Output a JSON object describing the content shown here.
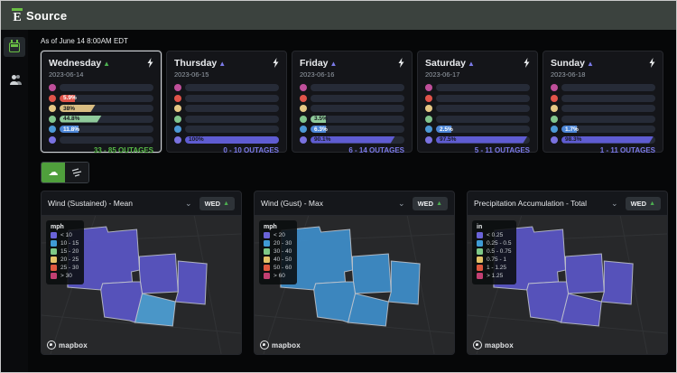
{
  "header": {
    "brand": "Source"
  },
  "sidebar": {
    "items": [
      "calendar",
      "users"
    ]
  },
  "as_of": "As of June 14 8:00AM EDT",
  "colors": {
    "accent_green": "#57b947",
    "accent_purple": "#7b7ae8",
    "track": "#262b37"
  },
  "days": [
    {
      "name": "Wednesday",
      "trend": "▲",
      "trend_color": "#4caf50",
      "date": "2023-06-14",
      "selected": true,
      "rows": [
        {
          "color": "#bf4f9a",
          "pct": 0,
          "label": "",
          "fill": "",
          "text": ""
        },
        {
          "color": "#e0544a",
          "pct": 5.9,
          "label": "5.9%",
          "fill": "#e0544a",
          "text": "#ffffff"
        },
        {
          "color": "#e6c885",
          "pct": 38,
          "label": "38%",
          "fill": "#d9bd82",
          "text": "#16181d"
        },
        {
          "color": "#82c68e",
          "pct": 44.8,
          "label": "44.8%",
          "fill": "#8fca9b",
          "text": "#16181d"
        },
        {
          "color": "#4d99d6",
          "pct": 11.8,
          "label": "11.8%",
          "fill": "#4d86d6",
          "text": "#ffffff"
        },
        {
          "color": "#7a72e0",
          "pct": 0,
          "label": "",
          "fill": "",
          "text": ""
        }
      ],
      "outages": "33 - 85 OUTAGES",
      "outages_color": "#57b947"
    },
    {
      "name": "Thursday",
      "trend": "▲",
      "trend_color": "#7b7ae8",
      "date": "2023-06-15",
      "selected": false,
      "rows": [
        {
          "color": "#bf4f9a",
          "pct": 0,
          "label": "",
          "fill": "",
          "text": ""
        },
        {
          "color": "#e0544a",
          "pct": 0,
          "label": "",
          "fill": "",
          "text": ""
        },
        {
          "color": "#e6c885",
          "pct": 0,
          "label": "",
          "fill": "",
          "text": ""
        },
        {
          "color": "#82c68e",
          "pct": 0,
          "label": "",
          "fill": "",
          "text": ""
        },
        {
          "color": "#4d99d6",
          "pct": 0,
          "label": "",
          "fill": "",
          "text": ""
        },
        {
          "color": "#7a72e0",
          "pct": 100,
          "label": "100%",
          "fill": "#5f5cd2",
          "text": "#16181d"
        }
      ],
      "outages": "0 - 10 OUTAGES",
      "outages_color": "#7b7ae8"
    },
    {
      "name": "Friday",
      "trend": "▲",
      "trend_color": "#7b7ae8",
      "date": "2023-06-16",
      "selected": false,
      "rows": [
        {
          "color": "#bf4f9a",
          "pct": 0,
          "label": "",
          "fill": "",
          "text": ""
        },
        {
          "color": "#e0544a",
          "pct": 0,
          "label": "",
          "fill": "",
          "text": ""
        },
        {
          "color": "#e6c885",
          "pct": 0,
          "label": "",
          "fill": "",
          "text": ""
        },
        {
          "color": "#82c68e",
          "pct": 3.5,
          "label": "3.5%",
          "fill": "#8fca9b",
          "text": "#16181d"
        },
        {
          "color": "#4d99d6",
          "pct": 6.3,
          "label": "6.3%",
          "fill": "#4d86d6",
          "text": "#ffffff"
        },
        {
          "color": "#7a72e0",
          "pct": 90.1,
          "label": "90.1%",
          "fill": "#5f5cd2",
          "text": "#16181d"
        }
      ],
      "outages": "6 - 14 OUTAGES",
      "outages_color": "#7b7ae8"
    },
    {
      "name": "Saturday",
      "trend": "▲",
      "trend_color": "#7b7ae8",
      "date": "2023-06-17",
      "selected": false,
      "rows": [
        {
          "color": "#bf4f9a",
          "pct": 0,
          "label": "",
          "fill": "",
          "text": ""
        },
        {
          "color": "#e0544a",
          "pct": 0,
          "label": "",
          "fill": "",
          "text": ""
        },
        {
          "color": "#e6c885",
          "pct": 0,
          "label": "",
          "fill": "",
          "text": ""
        },
        {
          "color": "#82c68e",
          "pct": 0,
          "label": "",
          "fill": "",
          "text": ""
        },
        {
          "color": "#4d99d6",
          "pct": 2.5,
          "label": "2.5%",
          "fill": "#4d86d6",
          "text": "#ffffff"
        },
        {
          "color": "#7a72e0",
          "pct": 97.5,
          "label": "97.5%",
          "fill": "#5f5cd2",
          "text": "#16181d"
        }
      ],
      "outages": "5 - 11 OUTAGES",
      "outages_color": "#7b7ae8"
    },
    {
      "name": "Sunday",
      "trend": "▲",
      "trend_color": "#7b7ae8",
      "date": "2023-06-18",
      "selected": false,
      "rows": [
        {
          "color": "#bf4f9a",
          "pct": 0,
          "label": "",
          "fill": "",
          "text": ""
        },
        {
          "color": "#e0544a",
          "pct": 0,
          "label": "",
          "fill": "",
          "text": ""
        },
        {
          "color": "#e6c885",
          "pct": 0,
          "label": "",
          "fill": "",
          "text": ""
        },
        {
          "color": "#82c68e",
          "pct": 0,
          "label": "",
          "fill": "",
          "text": ""
        },
        {
          "color": "#4d99d6",
          "pct": 1.7,
          "label": "1.7%",
          "fill": "#4d86d6",
          "text": "#ffffff"
        },
        {
          "color": "#7a72e0",
          "pct": 98.3,
          "label": "98.3%",
          "fill": "#5f5cd2",
          "text": "#16181d"
        }
      ],
      "outages": "1 - 11 OUTAGES",
      "outages_color": "#7b7ae8"
    }
  ],
  "layer_toggles": {
    "cloud_active": true,
    "wind_active": false,
    "cloud_glyph": "☁"
  },
  "panels": [
    {
      "title": "Wind (Sustained) - Mean",
      "badge": "WED",
      "badge_trend": "▲",
      "unit": "mph",
      "legend": [
        {
          "color": "#6a63d8",
          "label": "< 10"
        },
        {
          "color": "#3f9bd5",
          "label": "10 - 15"
        },
        {
          "color": "#7ec987",
          "label": "15 - 20"
        },
        {
          "color": "#e3c268",
          "label": "20 - 25"
        },
        {
          "color": "#e0593f",
          "label": "25 - 30"
        },
        {
          "color": "#c23f72",
          "label": "> 30"
        }
      ],
      "county_fills": [
        "#5a56c7",
        "#5a56c7",
        "#5a56c7",
        "#4d9fd6",
        "#5a56c7"
      ],
      "attribution": "mapbox"
    },
    {
      "title": "Wind (Gust) - Max",
      "badge": "WED",
      "badge_trend": "▲",
      "unit": "mph",
      "legend": [
        {
          "color": "#6a63d8",
          "label": "< 20"
        },
        {
          "color": "#3f9bd5",
          "label": "20 - 30"
        },
        {
          "color": "#7ec987",
          "label": "30 - 40"
        },
        {
          "color": "#e3c268",
          "label": "40 - 50"
        },
        {
          "color": "#e0593f",
          "label": "50 - 60"
        },
        {
          "color": "#c23f72",
          "label": "> 60"
        }
      ],
      "county_fills": [
        "#3e8ecb",
        "#3e8ecb",
        "#3e8ecb",
        "#3e8ecb",
        "#3e8ecb"
      ],
      "attribution": "mapbox"
    },
    {
      "title": "Precipitation Accumulation - Total",
      "badge": "WED",
      "badge_trend": "▲",
      "unit": "in",
      "legend": [
        {
          "color": "#6a63d8",
          "label": "< 0.25"
        },
        {
          "color": "#3f9bd5",
          "label": "0.25 - 0.5"
        },
        {
          "color": "#7ec987",
          "label": "0.5 - 0.75"
        },
        {
          "color": "#e3c268",
          "label": "0.75 - 1"
        },
        {
          "color": "#e0593f",
          "label": "1 - 1.25"
        },
        {
          "color": "#c23f72",
          "label": "> 1.25"
        }
      ],
      "county_fills": [
        "#5a56c7",
        "#5a56c7",
        "#5a56c7",
        "#5a56c7",
        "#5a56c7"
      ],
      "attribution": "mapbox"
    }
  ]
}
